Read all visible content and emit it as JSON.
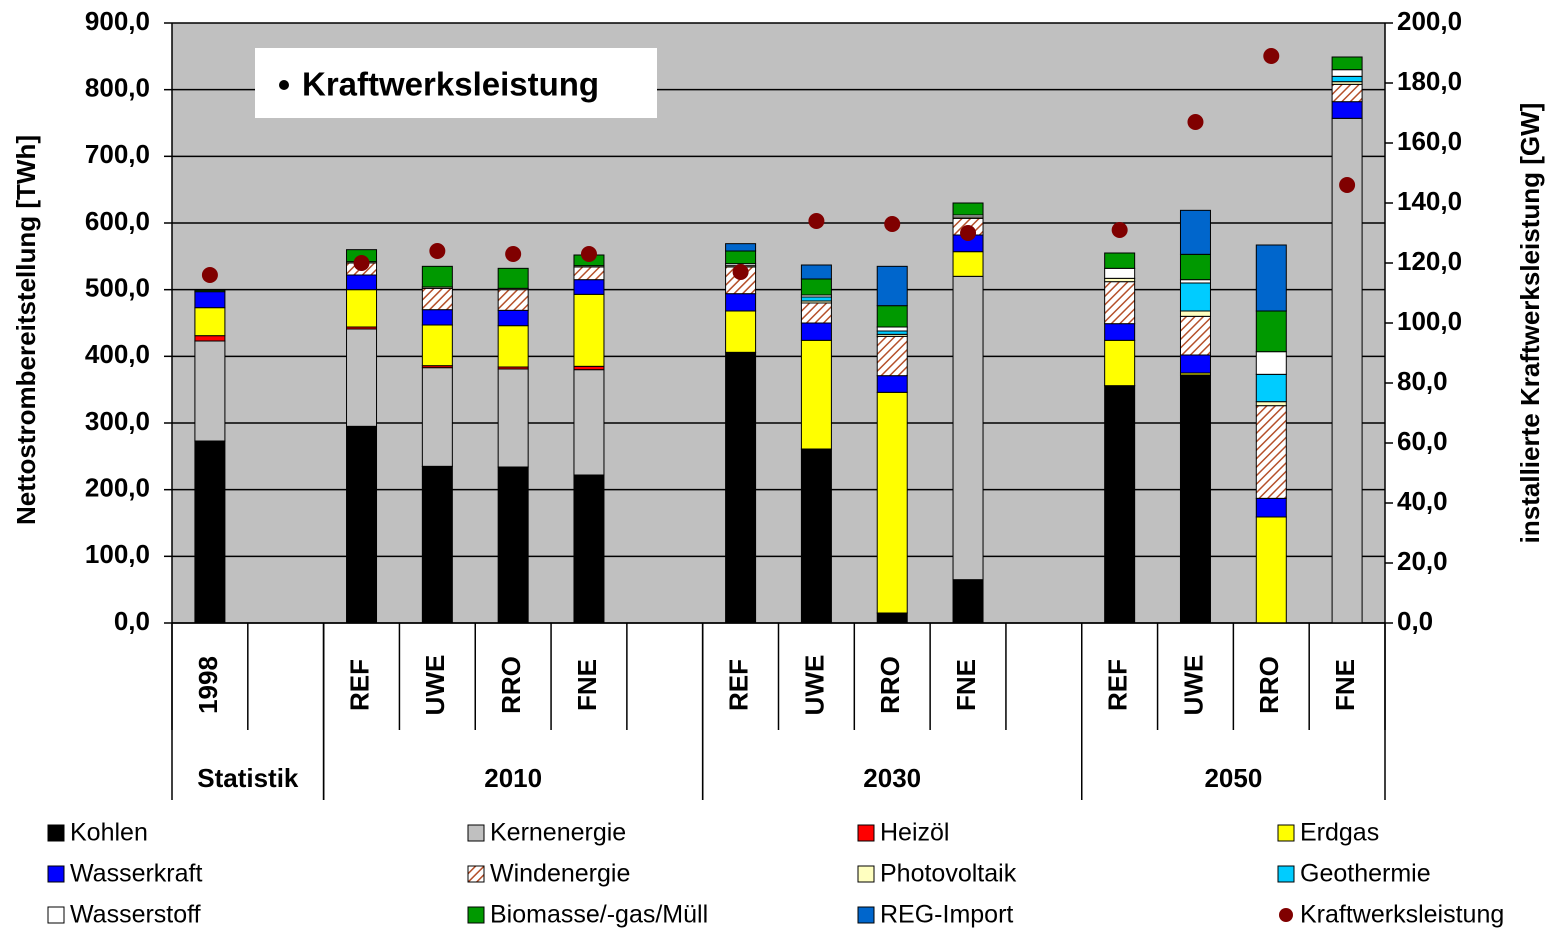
{
  "chart_data": {
    "type": "bar",
    "stacked": true,
    "annotation": "Kraftwerksleistung",
    "ylabel": "Nettostrombereitstellung [TWh]",
    "y2label": "installierte Kraftwerksleistung [GW]",
    "categories": [
      "1998",
      null,
      "REF",
      "UWE",
      "RRO",
      "FNE",
      null,
      "REF",
      "UWE",
      "RRO",
      "FNE",
      null,
      "REF",
      "UWE",
      "RRO",
      "FNE"
    ],
    "groups": [
      {
        "label": "Statistik",
        "span": 2
      },
      {
        "label": "2010",
        "span": 5
      },
      {
        "label": "2030",
        "span": 5
      },
      {
        "label": "2050",
        "span": 4
      }
    ],
    "ylim": [
      0,
      900
    ],
    "yticks": [
      {
        "value": 0,
        "label": "0,0"
      },
      {
        "value": 100,
        "label": "100,0"
      },
      {
        "value": 200,
        "label": "200,0"
      },
      {
        "value": 300,
        "label": "300,0"
      },
      {
        "value": 400,
        "label": "400,0"
      },
      {
        "value": 500,
        "label": "500,0"
      },
      {
        "value": 600,
        "label": "600,0"
      },
      {
        "value": 700,
        "label": "700,0"
      },
      {
        "value": 800,
        "label": "800,0"
      },
      {
        "value": 900,
        "label": "900,0"
      }
    ],
    "y2lim": [
      0,
      200
    ],
    "y2ticks": [
      {
        "value": 0,
        "label": "0,0"
      },
      {
        "value": 20,
        "label": "20,0"
      },
      {
        "value": 40,
        "label": "40,0"
      },
      {
        "value": 60,
        "label": "60,0"
      },
      {
        "value": 80,
        "label": "80,0"
      },
      {
        "value": 100,
        "label": "100,0"
      },
      {
        "value": 120,
        "label": "120,0"
      },
      {
        "value": 140,
        "label": "140,0"
      },
      {
        "value": 160,
        "label": "160,0"
      },
      {
        "value": 180,
        "label": "180,0"
      },
      {
        "value": 200,
        "label": "200,0"
      }
    ],
    "grid": true,
    "series": [
      {
        "name": "Kohlen",
        "color": "#000000",
        "values": [
          273,
          null,
          295,
          235,
          234,
          222,
          null,
          406,
          261,
          15,
          65,
          null,
          356,
          372,
          0,
          0
        ]
      },
      {
        "name": "Kernenergie",
        "color": "#c0c0c0",
        "values": [
          150,
          null,
          146,
          148,
          147,
          158,
          null,
          0,
          0,
          0,
          455,
          null,
          0,
          0,
          0,
          757
        ]
      },
      {
        "name": "Heizöl",
        "color": "#ff0000",
        "values": [
          8,
          null,
          3,
          3,
          3,
          5,
          null,
          0,
          0,
          0,
          0,
          null,
          0,
          0,
          0,
          0
        ]
      },
      {
        "name": "Erdgas",
        "color": "#ffff00",
        "values": [
          42,
          null,
          56,
          61,
          62,
          108,
          null,
          62,
          163,
          331,
          37,
          null,
          68,
          3,
          159,
          0
        ]
      },
      {
        "name": "Wasserkraft",
        "color": "#0000ff",
        "values": [
          24,
          null,
          22,
          23,
          23,
          22,
          null,
          26,
          26,
          25,
          25,
          null,
          25,
          27,
          28,
          25
        ]
      },
      {
        "name": "Windenergie",
        "color": "#993300",
        "hatch": true,
        "values": [
          0,
          null,
          18,
          32,
          31,
          19,
          null,
          40,
          30,
          59,
          25,
          null,
          63,
          58,
          139,
          26
        ]
      },
      {
        "name": "Photovoltaik",
        "color": "#ffffc0",
        "values": [
          0,
          null,
          2,
          2,
          2,
          2,
          null,
          2,
          3,
          3,
          2,
          null,
          5,
          8,
          6,
          4
        ]
      },
      {
        "name": "Geothermie",
        "color": "#00ccff",
        "values": [
          0,
          null,
          0,
          0,
          0,
          0,
          null,
          0,
          6,
          5,
          0,
          null,
          0,
          42,
          41,
          8
        ]
      },
      {
        "name": "Wasserstoff",
        "color": "#ffffff",
        "values": [
          0,
          null,
          0,
          0,
          0,
          0,
          null,
          3,
          3,
          6,
          3,
          null,
          15,
          5,
          34,
          10
        ]
      },
      {
        "name": "Biomasse/-gas/Müll",
        "color": "#009900",
        "values": [
          2,
          null,
          18,
          31,
          30,
          16,
          null,
          19,
          24,
          32,
          18,
          null,
          23,
          38,
          61,
          19
        ]
      },
      {
        "name": "REG-Import",
        "color": "#0066cc",
        "values": [
          0,
          null,
          0,
          0,
          0,
          0,
          null,
          11,
          21,
          59,
          0,
          null,
          0,
          66,
          99,
          0
        ]
      },
      {
        "name": "Kraftwerksleistung",
        "type": "scatter",
        "axis": "y2",
        "color": "#800000",
        "values": [
          116,
          null,
          120,
          124,
          123,
          123,
          null,
          117,
          134,
          133,
          130,
          null,
          131,
          167,
          189,
          146
        ]
      }
    ]
  }
}
